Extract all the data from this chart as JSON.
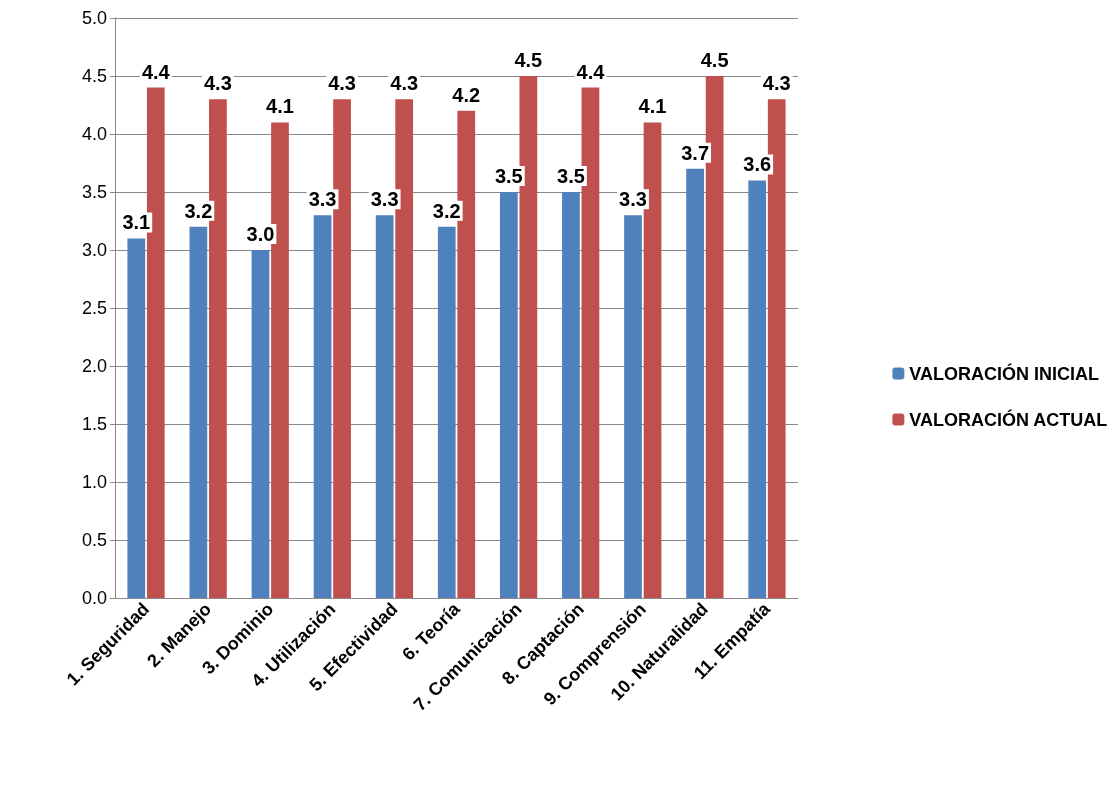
{
  "chart_data": {
    "type": "bar",
    "categories": [
      "1. Seguridad",
      "2. Manejo",
      "3. Dominio",
      "4. Utilización",
      "5. Efectividad",
      "6. Teoría",
      "7. Comunicación",
      "8. Captación",
      "9. Comprensión",
      "10. Naturalidad",
      "11. Empatía"
    ],
    "series": [
      {
        "name": "VALORACIÓN INICIAL",
        "color": "#4f81bd",
        "values": [
          3.1,
          3.2,
          3.0,
          3.3,
          3.3,
          3.2,
          3.5,
          3.5,
          3.3,
          3.7,
          3.6
        ],
        "value_labels": [
          "3.1",
          "3.2",
          "3.0",
          "3.3",
          "3.3",
          "3.2",
          "3.5",
          "3.5",
          "3.3",
          "3.7",
          "3.6"
        ]
      },
      {
        "name": "VALORACIÓN ACTUAL",
        "color": "#c0504d",
        "values": [
          4.4,
          4.3,
          4.1,
          4.3,
          4.3,
          4.2,
          4.5,
          4.4,
          4.1,
          4.5,
          4.3
        ],
        "value_labels": [
          "4.4",
          "4.3",
          "4.1",
          "4.3",
          "4.3",
          "4.2",
          "4.5",
          "4.4",
          "4.1",
          "4.5",
          "4.3"
        ]
      }
    ],
    "ylim": [
      0,
      5
    ],
    "yticks": [
      {
        "value": 0,
        "label": "0.0"
      },
      {
        "value": 0.5,
        "label": "0.5"
      },
      {
        "value": 1,
        "label": "1.0"
      },
      {
        "value": 1.5,
        "label": "1.5"
      },
      {
        "value": 2,
        "label": "2.0"
      },
      {
        "value": 2.5,
        "label": "2.5"
      },
      {
        "value": 3,
        "label": "3.0"
      },
      {
        "value": 3.5,
        "label": "3.5"
      },
      {
        "value": 4,
        "label": "4.0"
      },
      {
        "value": 4.5,
        "label": "4.5"
      },
      {
        "value": 5,
        "label": "5.0"
      }
    ],
    "grid": "y",
    "legend": "right"
  }
}
